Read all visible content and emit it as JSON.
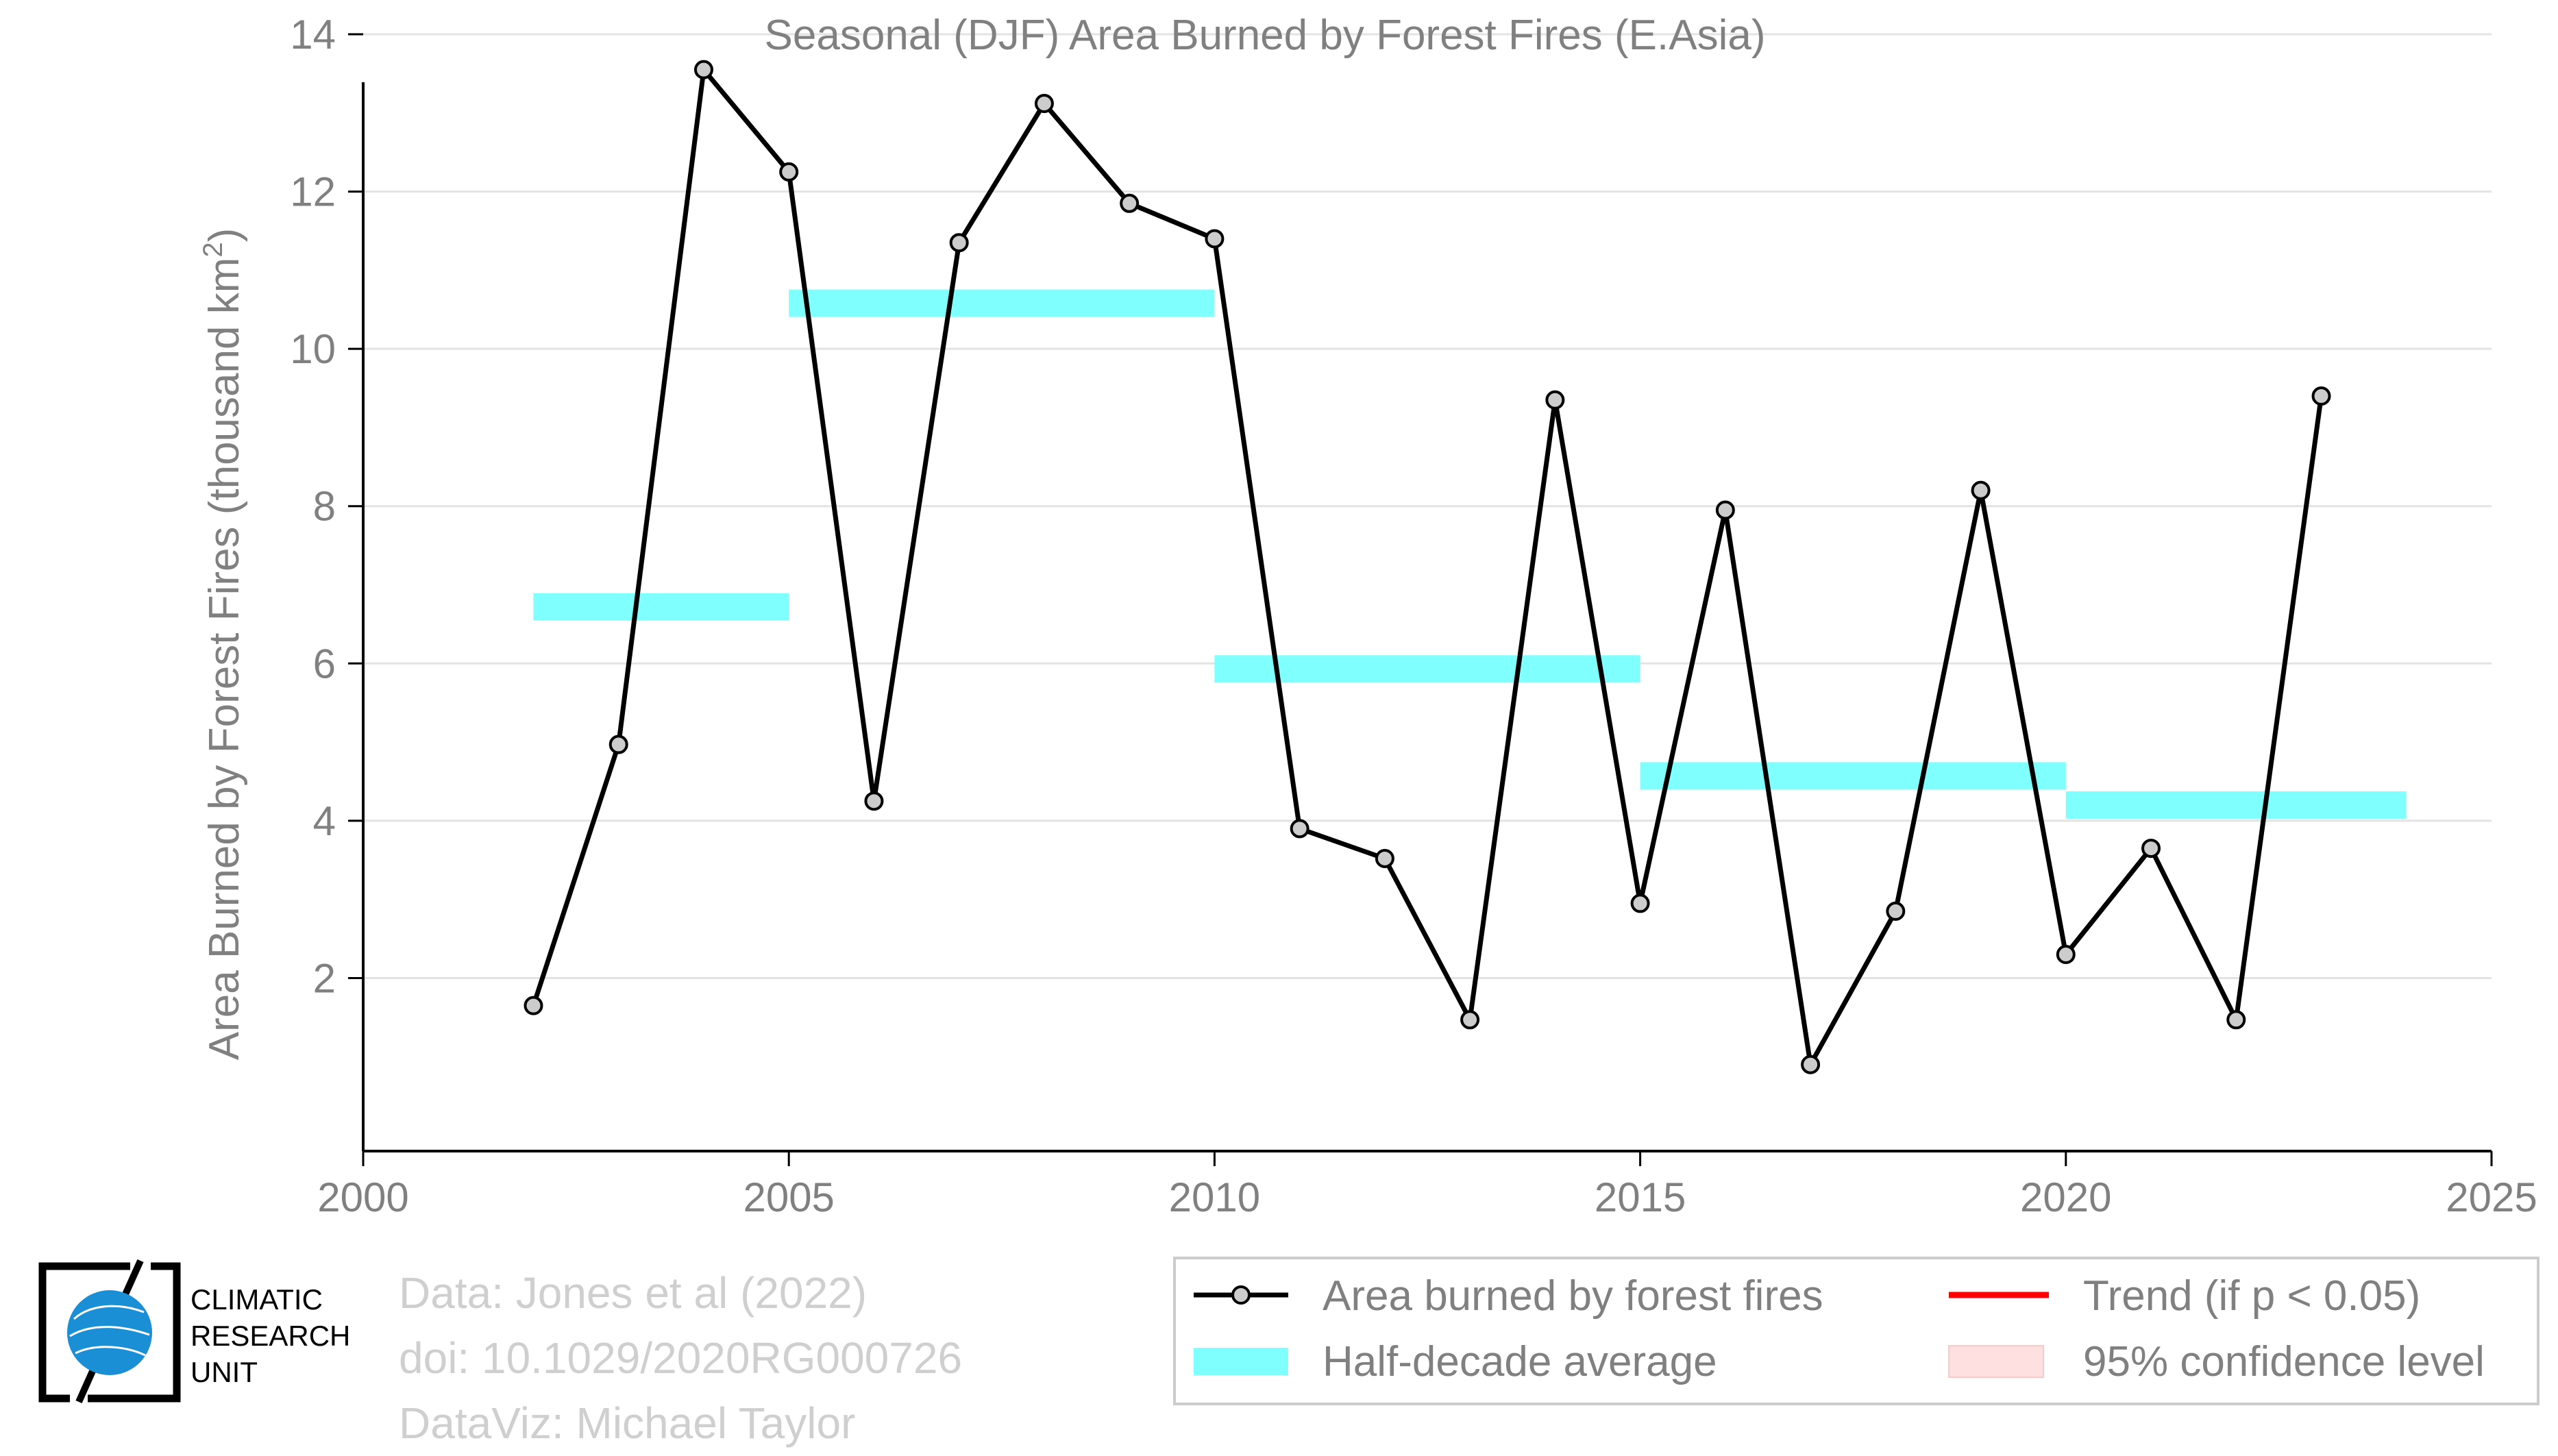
{
  "chart_data": {
    "type": "line",
    "title": "Seasonal (DJF) Area Burned by Forest Fires (E.Asia)",
    "ylabel": "Area Burned by Forest Fires (thousand km",
    "ylabel_sup": "2",
    "ylabel_close": ")",
    "xlabel": "",
    "xlim": [
      2000,
      2025
    ],
    "ylim": [
      -0.2,
      14
    ],
    "xticks": [
      "2000",
      "2005",
      "2010",
      "2015",
      "2020",
      "2025"
    ],
    "yticks": [
      "2",
      "4",
      "6",
      "8",
      "10",
      "12",
      "14"
    ],
    "grid": "horizontal",
    "series": [
      {
        "name": "Area burned by forest fires",
        "x": [
          2002,
          2003,
          2004,
          2005,
          2006,
          2007,
          2008,
          2009,
          2010,
          2011,
          2012,
          2013,
          2014,
          2015,
          2016,
          2017,
          2018,
          2019,
          2020,
          2021,
          2022,
          2023
        ],
        "values": [
          1.65,
          4.97,
          13.55,
          12.25,
          4.25,
          11.35,
          13.12,
          11.85,
          11.4,
          3.9,
          3.52,
          1.47,
          9.35,
          2.95,
          7.95,
          0.9,
          2.85,
          8.2,
          2.3,
          3.65,
          1.47,
          9.4
        ],
        "color": "#000000",
        "marker_fill": "#cccccc"
      }
    ],
    "half_decade_average": {
      "name": "Half-decade average",
      "color": "#80ffff",
      "segments": [
        {
          "x0": 2002,
          "x1": 2005,
          "value": 6.72
        },
        {
          "x0": 2005,
          "x1": 2010,
          "value": 10.58
        },
        {
          "x0": 2010,
          "x1": 2015,
          "value": 5.93
        },
        {
          "x0": 2015,
          "x1": 2020,
          "value": 4.57
        },
        {
          "x0": 2020,
          "x1": 2024,
          "value": 4.2
        }
      ]
    },
    "legend": {
      "placement": "bottom-right",
      "entries": [
        {
          "key": "line",
          "label": "Area burned by forest fires"
        },
        {
          "key": "trend",
          "label": "Trend (if p < 0.05)",
          "color": "#ff0000"
        },
        {
          "key": "avg",
          "label": "Half-decade average"
        },
        {
          "key": "ci",
          "label": "95% confidence level",
          "color": "#ffe0e0"
        }
      ]
    }
  },
  "credits": {
    "line1": "Data: Jones et al (2022)",
    "line2": "doi: 10.1029/2020RG000726",
    "line3": "DataViz: Michael Taylor"
  },
  "logo": {
    "line1": "CLIMATIC",
    "line2": "RESEARCH",
    "line3": "UNIT"
  },
  "colors": {
    "axis_text": "#808080",
    "grid": "#e3e3e3",
    "logo_blue": "#1a8fd6"
  }
}
